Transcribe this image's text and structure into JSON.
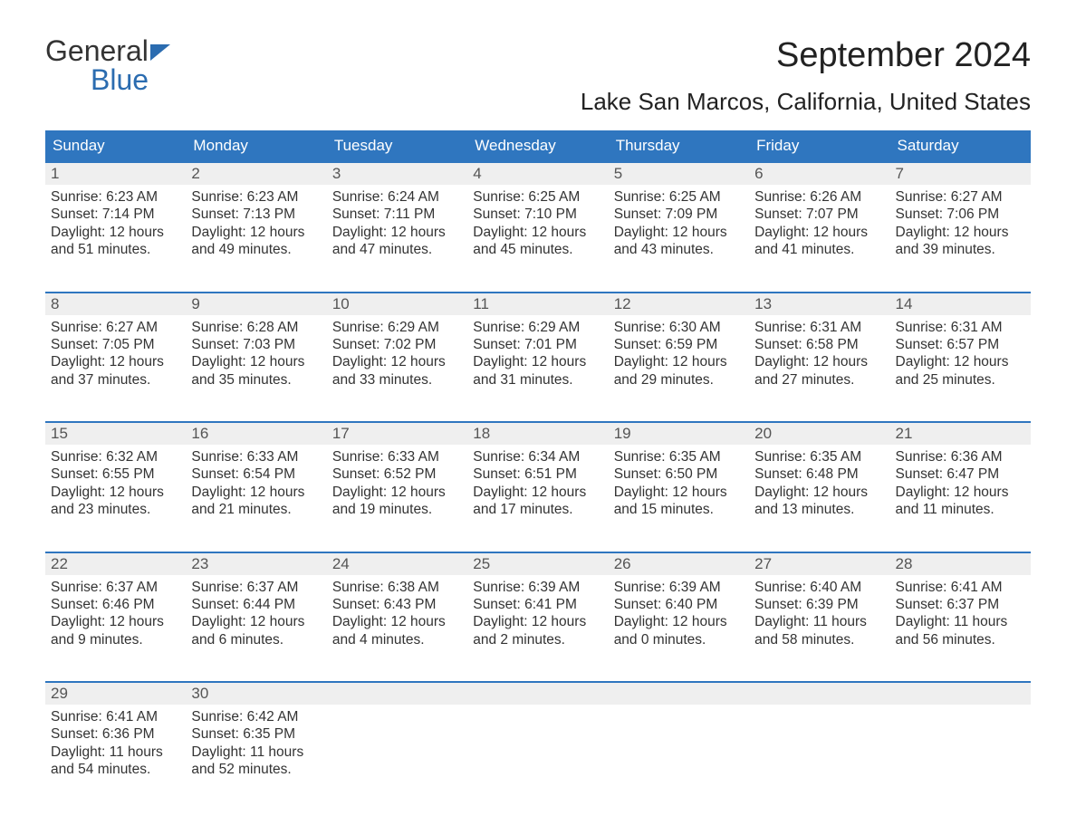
{
  "logo": {
    "text1": "General",
    "text2": "Blue",
    "color_dark": "#333333",
    "color_blue": "#2b6cb0"
  },
  "title": "September 2024",
  "location": "Lake San Marcos, California, United States",
  "colors": {
    "header_bg": "#2f76bf",
    "header_text": "#ffffff",
    "daynum_bg": "#efefef",
    "daynum_border": "#2f76bf",
    "body_text": "#333333",
    "page_bg": "#ffffff"
  },
  "fonts": {
    "title_size": 38,
    "location_size": 26,
    "header_size": 17,
    "body_size": 15.5
  },
  "day_headers": [
    "Sunday",
    "Monday",
    "Tuesday",
    "Wednesday",
    "Thursday",
    "Friday",
    "Saturday"
  ],
  "weeks": [
    [
      {
        "n": "1",
        "sunrise": "6:23 AM",
        "sunset": "7:14 PM",
        "daylight": "12 hours and 51 minutes."
      },
      {
        "n": "2",
        "sunrise": "6:23 AM",
        "sunset": "7:13 PM",
        "daylight": "12 hours and 49 minutes."
      },
      {
        "n": "3",
        "sunrise": "6:24 AM",
        "sunset": "7:11 PM",
        "daylight": "12 hours and 47 minutes."
      },
      {
        "n": "4",
        "sunrise": "6:25 AM",
        "sunset": "7:10 PM",
        "daylight": "12 hours and 45 minutes."
      },
      {
        "n": "5",
        "sunrise": "6:25 AM",
        "sunset": "7:09 PM",
        "daylight": "12 hours and 43 minutes."
      },
      {
        "n": "6",
        "sunrise": "6:26 AM",
        "sunset": "7:07 PM",
        "daylight": "12 hours and 41 minutes."
      },
      {
        "n": "7",
        "sunrise": "6:27 AM",
        "sunset": "7:06 PM",
        "daylight": "12 hours and 39 minutes."
      }
    ],
    [
      {
        "n": "8",
        "sunrise": "6:27 AM",
        "sunset": "7:05 PM",
        "daylight": "12 hours and 37 minutes."
      },
      {
        "n": "9",
        "sunrise": "6:28 AM",
        "sunset": "7:03 PM",
        "daylight": "12 hours and 35 minutes."
      },
      {
        "n": "10",
        "sunrise": "6:29 AM",
        "sunset": "7:02 PM",
        "daylight": "12 hours and 33 minutes."
      },
      {
        "n": "11",
        "sunrise": "6:29 AM",
        "sunset": "7:01 PM",
        "daylight": "12 hours and 31 minutes."
      },
      {
        "n": "12",
        "sunrise": "6:30 AM",
        "sunset": "6:59 PM",
        "daylight": "12 hours and 29 minutes."
      },
      {
        "n": "13",
        "sunrise": "6:31 AM",
        "sunset": "6:58 PM",
        "daylight": "12 hours and 27 minutes."
      },
      {
        "n": "14",
        "sunrise": "6:31 AM",
        "sunset": "6:57 PM",
        "daylight": "12 hours and 25 minutes."
      }
    ],
    [
      {
        "n": "15",
        "sunrise": "6:32 AM",
        "sunset": "6:55 PM",
        "daylight": "12 hours and 23 minutes."
      },
      {
        "n": "16",
        "sunrise": "6:33 AM",
        "sunset": "6:54 PM",
        "daylight": "12 hours and 21 minutes."
      },
      {
        "n": "17",
        "sunrise": "6:33 AM",
        "sunset": "6:52 PM",
        "daylight": "12 hours and 19 minutes."
      },
      {
        "n": "18",
        "sunrise": "6:34 AM",
        "sunset": "6:51 PM",
        "daylight": "12 hours and 17 minutes."
      },
      {
        "n": "19",
        "sunrise": "6:35 AM",
        "sunset": "6:50 PM",
        "daylight": "12 hours and 15 minutes."
      },
      {
        "n": "20",
        "sunrise": "6:35 AM",
        "sunset": "6:48 PM",
        "daylight": "12 hours and 13 minutes."
      },
      {
        "n": "21",
        "sunrise": "6:36 AM",
        "sunset": "6:47 PM",
        "daylight": "12 hours and 11 minutes."
      }
    ],
    [
      {
        "n": "22",
        "sunrise": "6:37 AM",
        "sunset": "6:46 PM",
        "daylight": "12 hours and 9 minutes."
      },
      {
        "n": "23",
        "sunrise": "6:37 AM",
        "sunset": "6:44 PM",
        "daylight": "12 hours and 6 minutes."
      },
      {
        "n": "24",
        "sunrise": "6:38 AM",
        "sunset": "6:43 PM",
        "daylight": "12 hours and 4 minutes."
      },
      {
        "n": "25",
        "sunrise": "6:39 AM",
        "sunset": "6:41 PM",
        "daylight": "12 hours and 2 minutes."
      },
      {
        "n": "26",
        "sunrise": "6:39 AM",
        "sunset": "6:40 PM",
        "daylight": "12 hours and 0 minutes."
      },
      {
        "n": "27",
        "sunrise": "6:40 AM",
        "sunset": "6:39 PM",
        "daylight": "11 hours and 58 minutes."
      },
      {
        "n": "28",
        "sunrise": "6:41 AM",
        "sunset": "6:37 PM",
        "daylight": "11 hours and 56 minutes."
      }
    ],
    [
      {
        "n": "29",
        "sunrise": "6:41 AM",
        "sunset": "6:36 PM",
        "daylight": "11 hours and 54 minutes."
      },
      {
        "n": "30",
        "sunrise": "6:42 AM",
        "sunset": "6:35 PM",
        "daylight": "11 hours and 52 minutes."
      },
      null,
      null,
      null,
      null,
      null
    ]
  ],
  "labels": {
    "sunrise": "Sunrise: ",
    "sunset": "Sunset: ",
    "daylight": "Daylight: "
  }
}
